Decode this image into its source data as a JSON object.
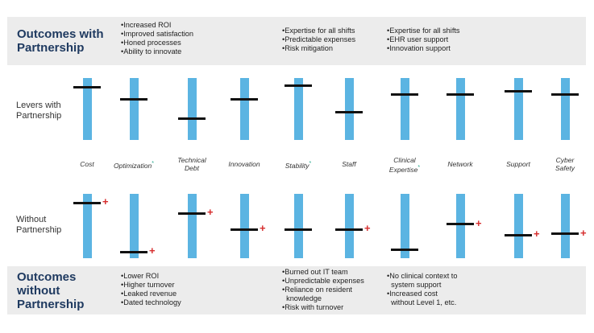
{
  "outcomes_with": {
    "title_line1": "Outcomes with",
    "title_line2": "Partnership",
    "groups": [
      [
        "•Increased ROI",
        "•Improved satisfaction",
        "•Honed processes",
        "•Ability to innovate"
      ],
      [
        "•Expertise for all shifts",
        "•Predictable expenses",
        "•Risk mitigation"
      ],
      [
        "•Expertise for all shifts",
        "•EHR user support",
        "•Innovation support"
      ]
    ]
  },
  "outcomes_without": {
    "title_line1": "Outcomes",
    "title_line2": "without",
    "title_line3": "Partnership",
    "groups": [
      [
        "•Lower ROI",
        "•Higher turnover",
        "•Leaked revenue",
        "•Dated technology"
      ],
      [
        "•Burned out IT team",
        "•Unpredictable expenses",
        "•Reliance on resident",
        "  knowledge",
        "•Risk with turnover"
      ],
      [
        "•No clinical context to",
        "  system support",
        "•Increased cost",
        "  without Level 1, etc."
      ]
    ]
  },
  "row_labels": {
    "with_line1": "Levers with",
    "with_line2": "Partnership",
    "without_line1": "Without",
    "without_line2": "Partnership"
  },
  "levers": [
    {
      "line1": "Cost",
      "line2": "",
      "asterisk": "",
      "with_level": 0.85,
      "without_level": 0.86,
      "without_plus": "+"
    },
    {
      "line1": "Optimization",
      "line2": "",
      "asterisk": "*",
      "with_level": 0.65,
      "without_level": 0.1,
      "without_plus": "+"
    },
    {
      "line1": "Technical",
      "line2": "Debt",
      "asterisk": "",
      "with_level": 0.35,
      "without_level": 0.7,
      "without_plus": "+"
    },
    {
      "line1": "Innovation",
      "line2": "",
      "asterisk": "",
      "with_level": 0.65,
      "without_level": 0.45,
      "without_plus": "+"
    },
    {
      "line1": "Stability",
      "line2": "",
      "asterisk": "*",
      "with_level": 0.88,
      "without_level": 0.44,
      "without_plus": ""
    },
    {
      "line1": "Staff",
      "line2": "",
      "asterisk": "",
      "with_level": 0.45,
      "without_level": 0.45,
      "without_plus": "+"
    },
    {
      "line1": "Clinical",
      "line2": "Expertise",
      "asterisk": "*",
      "with_level": 0.74,
      "without_level": 0.13,
      "without_plus": ""
    },
    {
      "line1": "Network",
      "line2": "",
      "asterisk": "",
      "with_level": 0.73,
      "without_level": 0.53,
      "without_plus": "+"
    },
    {
      "line1": "Support",
      "line2": "",
      "asterisk": "",
      "with_level": 0.78,
      "without_level": 0.36,
      "without_plus": "+"
    },
    {
      "line1": "Cyber",
      "line2": "Safety",
      "asterisk": "",
      "with_level": 0.73,
      "without_level": 0.38,
      "without_plus": "+"
    }
  ],
  "colors": {
    "bar": "#5bb4e2",
    "tick": "#111111",
    "plus": "#d62d2d",
    "title": "#1f3a60",
    "band": "#ececec",
    "asterisk": "#22a58a"
  }
}
